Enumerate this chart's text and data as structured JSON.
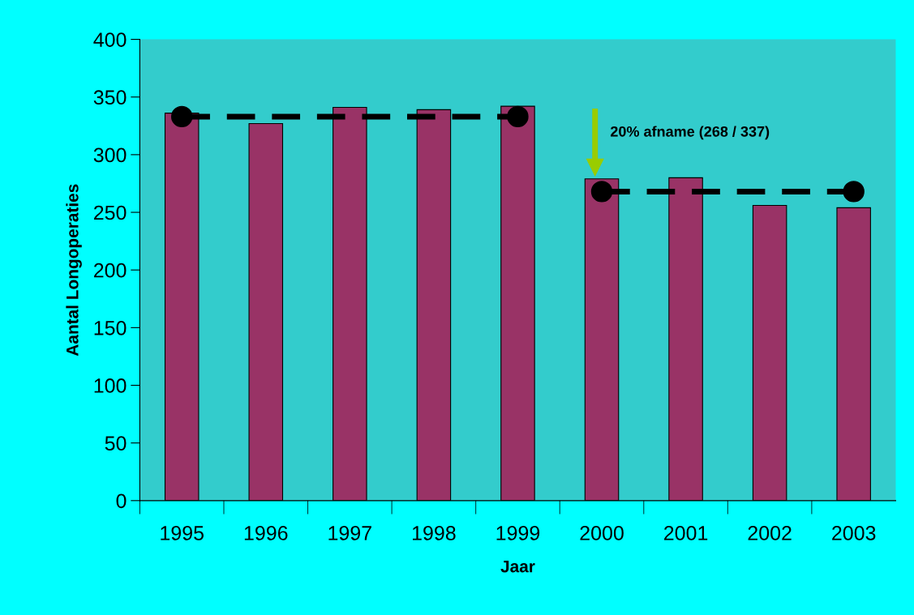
{
  "chart_data": {
    "type": "bar",
    "xlabel": "Jaar",
    "ylabel": "Aantal Longoperaties",
    "categories": [
      "1995",
      "1996",
      "1997",
      "1998",
      "1999",
      "2000",
      "2001",
      "2002",
      "2003"
    ],
    "series": [
      {
        "type": "bar",
        "color": "#993366",
        "values": [
          336,
          327,
          341,
          339,
          342,
          279,
          280,
          256,
          254
        ]
      },
      {
        "type": "line",
        "color": "#000000",
        "marker": "circle",
        "line_style": "dashed",
        "values": [
          333,
          null,
          null,
          null,
          333,
          null,
          null,
          null,
          null
        ]
      },
      {
        "type": "line",
        "color": "#000000",
        "marker": "circle",
        "line_style": "dashed",
        "values": [
          null,
          null,
          null,
          null,
          null,
          268,
          null,
          null,
          268
        ]
      }
    ],
    "annotations": [
      {
        "text": "20% afname (268 / 337)",
        "x": "2000",
        "y": 279
      }
    ],
    "ylim": [
      0,
      400
    ],
    "yticks": [
      0,
      50,
      100,
      150,
      200,
      250,
      300,
      350,
      400
    ],
    "grid": false,
    "legend": false
  }
}
